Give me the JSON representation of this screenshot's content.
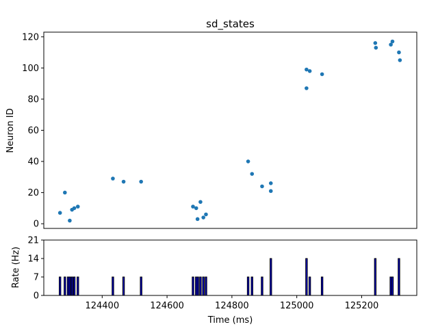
{
  "chart_data": [
    {
      "type": "scatter",
      "title": "sd_states",
      "xlabel": "",
      "ylabel": "Neuron ID",
      "xlim": [
        124220,
        125370
      ],
      "ylim": [
        -3,
        123
      ],
      "yticks": [
        0,
        20,
        40,
        60,
        80,
        100,
        120
      ],
      "marker_color": "#1f77b4",
      "points": [
        {
          "x": 124270,
          "y": 7
        },
        {
          "x": 124285,
          "y": 20
        },
        {
          "x": 124300,
          "y": 2
        },
        {
          "x": 124307,
          "y": 9
        },
        {
          "x": 124314,
          "y": 10
        },
        {
          "x": 124325,
          "y": 11
        },
        {
          "x": 124433,
          "y": 29
        },
        {
          "x": 124466,
          "y": 27
        },
        {
          "x": 124520,
          "y": 27
        },
        {
          "x": 124680,
          "y": 11
        },
        {
          "x": 124690,
          "y": 10
        },
        {
          "x": 124694,
          "y": 3
        },
        {
          "x": 124703,
          "y": 14
        },
        {
          "x": 124712,
          "y": 4
        },
        {
          "x": 124720,
          "y": 6
        },
        {
          "x": 124850,
          "y": 40
        },
        {
          "x": 124862,
          "y": 32
        },
        {
          "x": 124893,
          "y": 24
        },
        {
          "x": 124920,
          "y": 26
        },
        {
          "x": 124920,
          "y": 21
        },
        {
          "x": 125030,
          "y": 99
        },
        {
          "x": 125030,
          "y": 87
        },
        {
          "x": 125040,
          "y": 98
        },
        {
          "x": 125078,
          "y": 96
        },
        {
          "x": 125242,
          "y": 116
        },
        {
          "x": 125244,
          "y": 113
        },
        {
          "x": 125290,
          "y": 115
        },
        {
          "x": 125295,
          "y": 117
        },
        {
          "x": 125315,
          "y": 110
        },
        {
          "x": 125318,
          "y": 105
        }
      ]
    },
    {
      "type": "bar",
      "title": "",
      "xlabel": "Time (ms)",
      "ylabel": "Rate (Hz)",
      "xlim": [
        124220,
        125370
      ],
      "ylim": [
        0,
        21
      ],
      "yticks": [
        0,
        7,
        14,
        21
      ],
      "xticks": [
        124400,
        124600,
        124800,
        125000,
        125200
      ],
      "bar_width_ms": 5,
      "bar_color": "#0000cc",
      "edge_color": "#000000",
      "bars": [
        {
          "x": 124270,
          "value": 7
        },
        {
          "x": 124285,
          "value": 7
        },
        {
          "x": 124295,
          "value": 7
        },
        {
          "x": 124300,
          "value": 7
        },
        {
          "x": 124307,
          "value": 7
        },
        {
          "x": 124314,
          "value": 7
        },
        {
          "x": 124325,
          "value": 7
        },
        {
          "x": 124433,
          "value": 7
        },
        {
          "x": 124466,
          "value": 7
        },
        {
          "x": 124520,
          "value": 7
        },
        {
          "x": 124680,
          "value": 7
        },
        {
          "x": 124690,
          "value": 7
        },
        {
          "x": 124695,
          "value": 7
        },
        {
          "x": 124703,
          "value": 7
        },
        {
          "x": 124712,
          "value": 7
        },
        {
          "x": 124720,
          "value": 7
        },
        {
          "x": 124850,
          "value": 7
        },
        {
          "x": 124862,
          "value": 7
        },
        {
          "x": 124893,
          "value": 7
        },
        {
          "x": 124920,
          "value": 14
        },
        {
          "x": 125030,
          "value": 14
        },
        {
          "x": 125040,
          "value": 7
        },
        {
          "x": 125078,
          "value": 7
        },
        {
          "x": 125242,
          "value": 14
        },
        {
          "x": 125290,
          "value": 7
        },
        {
          "x": 125295,
          "value": 7
        },
        {
          "x": 125315,
          "value": 14
        }
      ]
    }
  ]
}
